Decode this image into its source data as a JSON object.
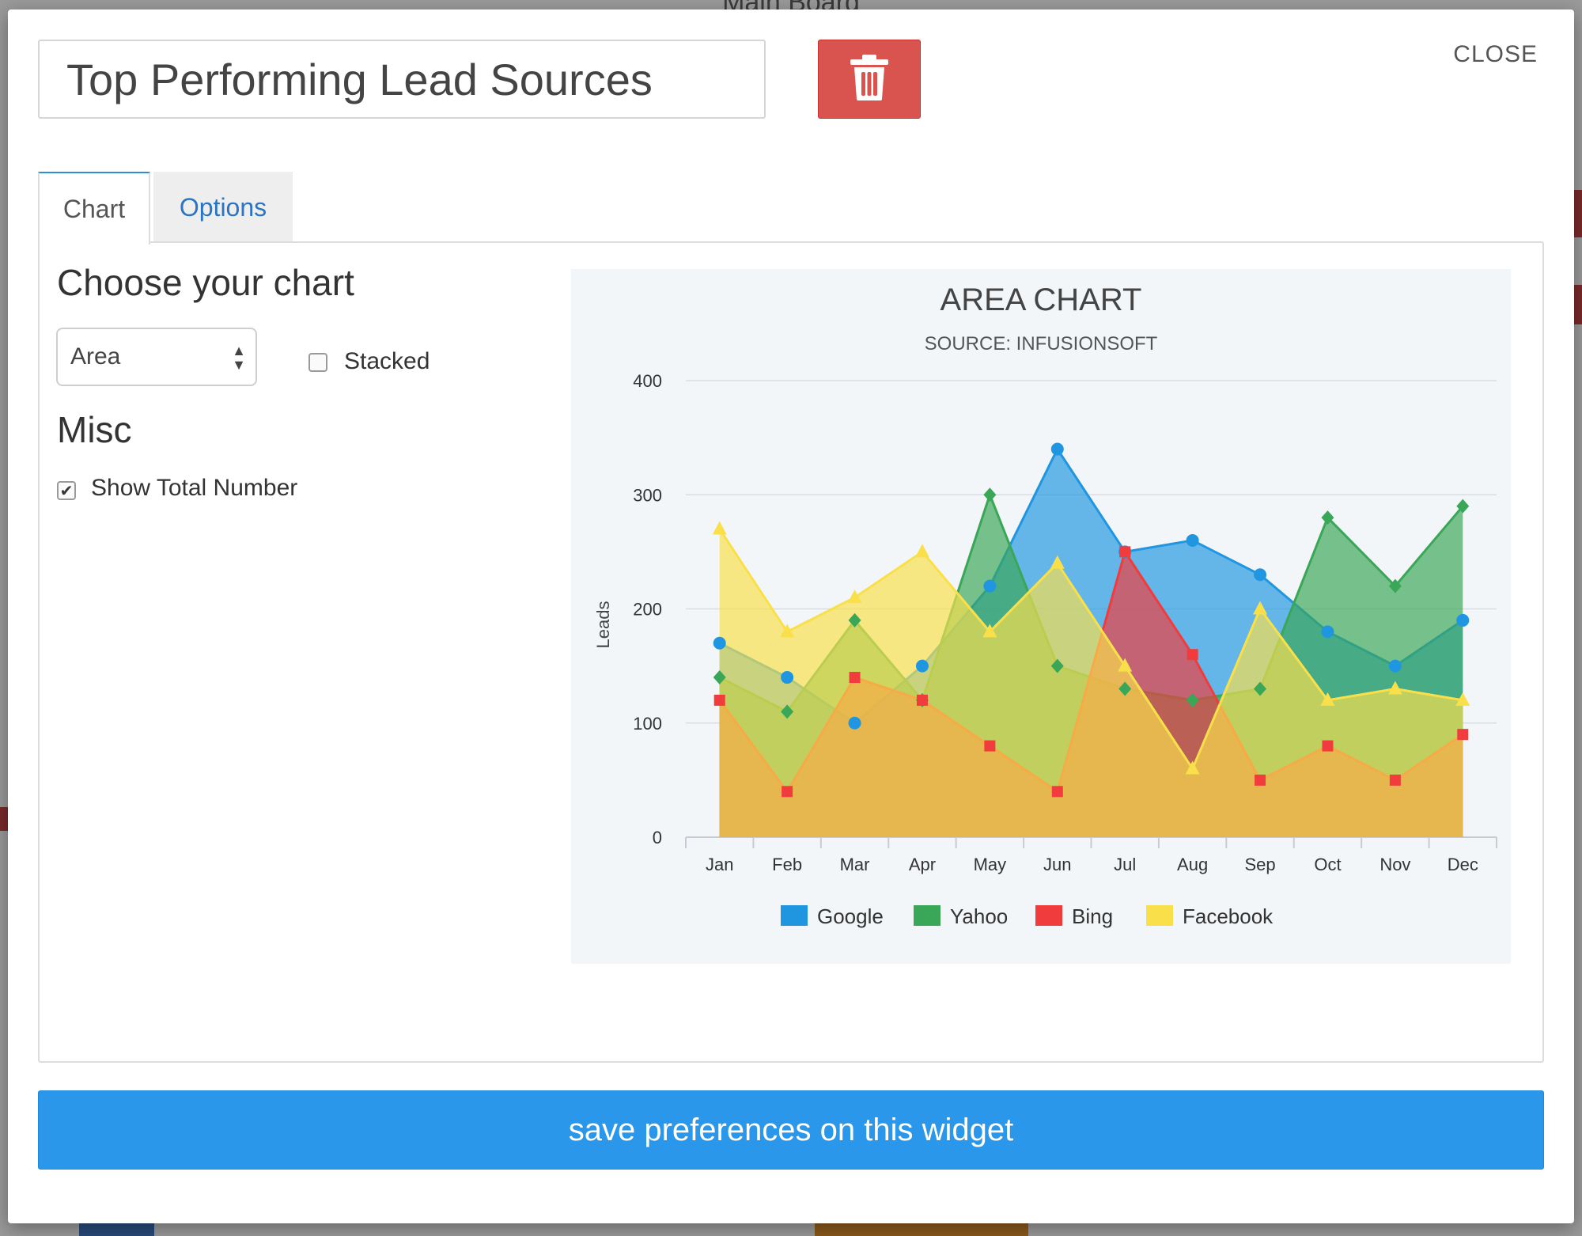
{
  "backdrop": {
    "title": "Main Board"
  },
  "modal": {
    "title_value": "Top Performing Lead Sources",
    "close_label": "CLOSE",
    "tabs": [
      {
        "label": "Chart",
        "active": true
      },
      {
        "label": "Options",
        "active": false
      }
    ],
    "choose_heading": "Choose your chart",
    "chart_type_selected": "Area",
    "stacked_label": "Stacked",
    "stacked_checked": false,
    "misc_heading": "Misc",
    "show_total_label": "Show Total Number",
    "show_total_checked": true,
    "save_label": "save preferences on this widget",
    "colors": {
      "accent": "#2a97ea",
      "danger": "#d9534f",
      "tab_link": "#2a74c4"
    },
    "icons": {
      "delete": "trash-icon",
      "select": "up-down-arrows-icon",
      "check": "checkmark-icon"
    }
  },
  "chart_data": {
    "type": "area",
    "title": "AREA CHART",
    "subtitle": "SOURCE: INFUSIONSOFT",
    "ylabel": "Leads",
    "xlabel": "",
    "ylim": [
      0,
      400
    ],
    "yticks": [
      0,
      100,
      200,
      300,
      400
    ],
    "grid": true,
    "legend_position": "bottom",
    "categories": [
      "Jan",
      "Feb",
      "Mar",
      "Apr",
      "May",
      "Jun",
      "Jul",
      "Aug",
      "Sep",
      "Oct",
      "Nov",
      "Dec"
    ],
    "series": [
      {
        "name": "Google",
        "color": "#2196e0",
        "marker": "circle",
        "values": [
          170,
          140,
          100,
          150,
          220,
          340,
          250,
          260,
          230,
          180,
          150,
          190
        ]
      },
      {
        "name": "Yahoo",
        "color": "#3aa657",
        "marker": "diamond",
        "values": [
          140,
          110,
          190,
          120,
          300,
          150,
          130,
          120,
          130,
          280,
          220,
          290
        ]
      },
      {
        "name": "Bing",
        "color": "#f03c3c",
        "marker": "square",
        "values": [
          120,
          40,
          140,
          120,
          80,
          40,
          250,
          160,
          50,
          80,
          50,
          90
        ]
      },
      {
        "name": "Facebook",
        "color": "#f9e04b",
        "marker": "triangle",
        "values": [
          270,
          180,
          210,
          250,
          180,
          240,
          150,
          60,
          200,
          120,
          130,
          120
        ]
      }
    ]
  }
}
